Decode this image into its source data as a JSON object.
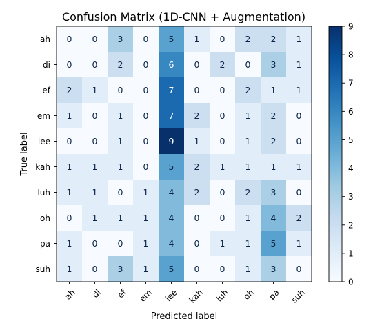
{
  "chart_data": {
    "type": "heatmap",
    "title": "Confusion Matrix (1D-CNN + Augmentation)",
    "xlabel": "Predicted label",
    "ylabel": "True label",
    "labels": [
      "ah",
      "di",
      "ef",
      "em",
      "iee",
      "kah",
      "luh",
      "oh",
      "pa",
      "suh"
    ],
    "matrix": [
      [
        0,
        0,
        3,
        0,
        5,
        1,
        0,
        2,
        2,
        1
      ],
      [
        0,
        0,
        2,
        0,
        6,
        0,
        2,
        0,
        3,
        1
      ],
      [
        2,
        1,
        0,
        0,
        7,
        0,
        0,
        2,
        1,
        1
      ],
      [
        1,
        0,
        1,
        0,
        7,
        2,
        0,
        1,
        2,
        0
      ],
      [
        0,
        0,
        1,
        0,
        9,
        1,
        0,
        1,
        2,
        0
      ],
      [
        1,
        1,
        1,
        0,
        5,
        2,
        1,
        1,
        1,
        1
      ],
      [
        1,
        1,
        0,
        1,
        4,
        2,
        0,
        2,
        3,
        0
      ],
      [
        0,
        1,
        1,
        1,
        4,
        0,
        0,
        1,
        4,
        2
      ],
      [
        1,
        0,
        0,
        1,
        4,
        0,
        1,
        1,
        5,
        1
      ],
      [
        1,
        0,
        3,
        1,
        5,
        0,
        0,
        1,
        3,
        0
      ]
    ],
    "colorbar": {
      "range": [
        0,
        9
      ],
      "ticks": [
        0,
        1,
        2,
        3,
        4,
        5,
        6,
        7,
        8,
        9
      ],
      "colormap": "Blues"
    },
    "grid": false
  }
}
